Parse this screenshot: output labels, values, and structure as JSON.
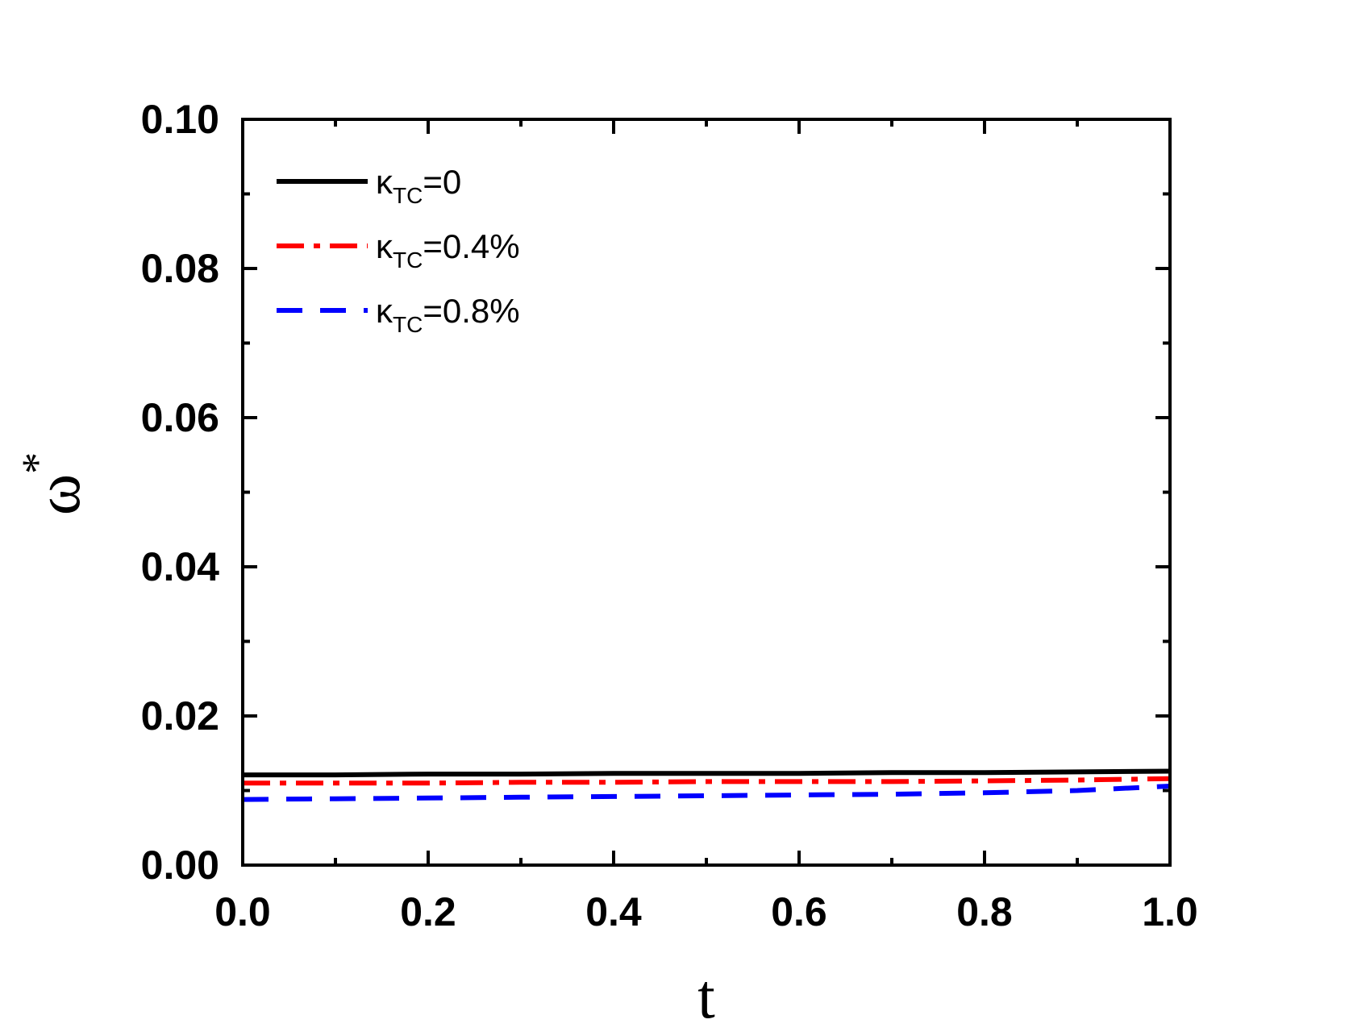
{
  "chart_data": {
    "type": "line",
    "title": "",
    "xlabel": "t",
    "ylabel": "ω",
    "ylabel_superscript": "*",
    "xlim": [
      0.0,
      1.0
    ],
    "ylim": [
      0.0,
      0.1
    ],
    "xticks": [
      "0.0",
      "0.2",
      "0.4",
      "0.6",
      "0.8",
      "1.0"
    ],
    "yticks": [
      "0.00",
      "0.02",
      "0.04",
      "0.06",
      "0.08",
      "0.10"
    ],
    "grid": false,
    "legend_position": "top-left",
    "x": [
      0.0,
      0.1,
      0.2,
      0.3,
      0.4,
      0.5,
      0.6,
      0.7,
      0.8,
      0.9,
      1.0
    ],
    "series": [
      {
        "name": "κ",
        "name_subscript": "TC",
        "name_suffix": "=0",
        "color": "#000000",
        "style": "solid",
        "values": [
          0.0121,
          0.0121,
          0.0122,
          0.0122,
          0.0123,
          0.0123,
          0.0123,
          0.0124,
          0.0124,
          0.0125,
          0.0126
        ]
      },
      {
        "name": "κ",
        "name_subscript": "TC",
        "name_suffix": "=0.4%",
        "color": "#ff0000",
        "style": "dashdot",
        "values": [
          0.011,
          0.011,
          0.011,
          0.0111,
          0.0111,
          0.0112,
          0.0112,
          0.0112,
          0.0113,
          0.0114,
          0.0116
        ]
      },
      {
        "name": "κ",
        "name_subscript": "TC",
        "name_suffix": "=0.8%",
        "color": "#0000ff",
        "style": "dash",
        "values": [
          0.0088,
          0.0089,
          0.009,
          0.0091,
          0.0092,
          0.0093,
          0.0094,
          0.0095,
          0.0097,
          0.01,
          0.0106
        ]
      }
    ]
  }
}
